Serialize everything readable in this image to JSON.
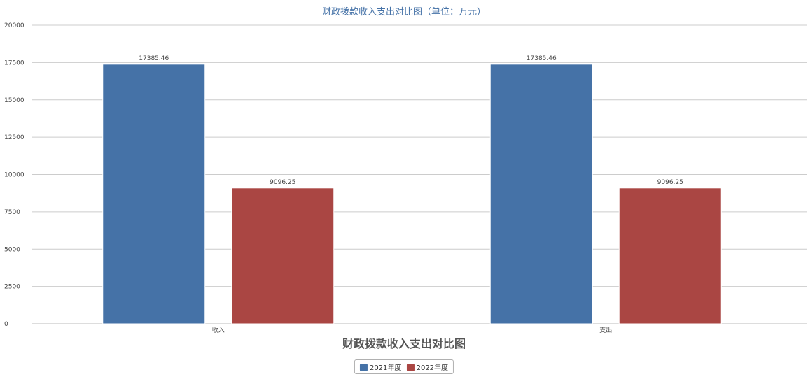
{
  "colors": {
    "series_2021": "#4572a7",
    "series_2022": "#aa4643",
    "grid": "#cccccc",
    "title": "#4572a7"
  },
  "chart_data": {
    "type": "bar",
    "title": "财政拨款收入支出对比图（单位：万元）",
    "xlabel": "财政拨款收入支出对比图",
    "ylabel": "",
    "categories": [
      "收入",
      "支出"
    ],
    "series": [
      {
        "name": "2021年度",
        "values": [
          17385.46,
          17385.46
        ],
        "labels": [
          "17385.46",
          "17385.46"
        ]
      },
      {
        "name": "2022年度",
        "values": [
          9096.25,
          9096.25
        ],
        "labels": [
          "9096.25",
          "9096.25"
        ]
      }
    ],
    "ylim": [
      0,
      20000
    ],
    "yticks": [
      0,
      2500,
      5000,
      7500,
      10000,
      12500,
      15000,
      17500,
      20000
    ],
    "grid": true,
    "legend_position": "bottom-center"
  }
}
